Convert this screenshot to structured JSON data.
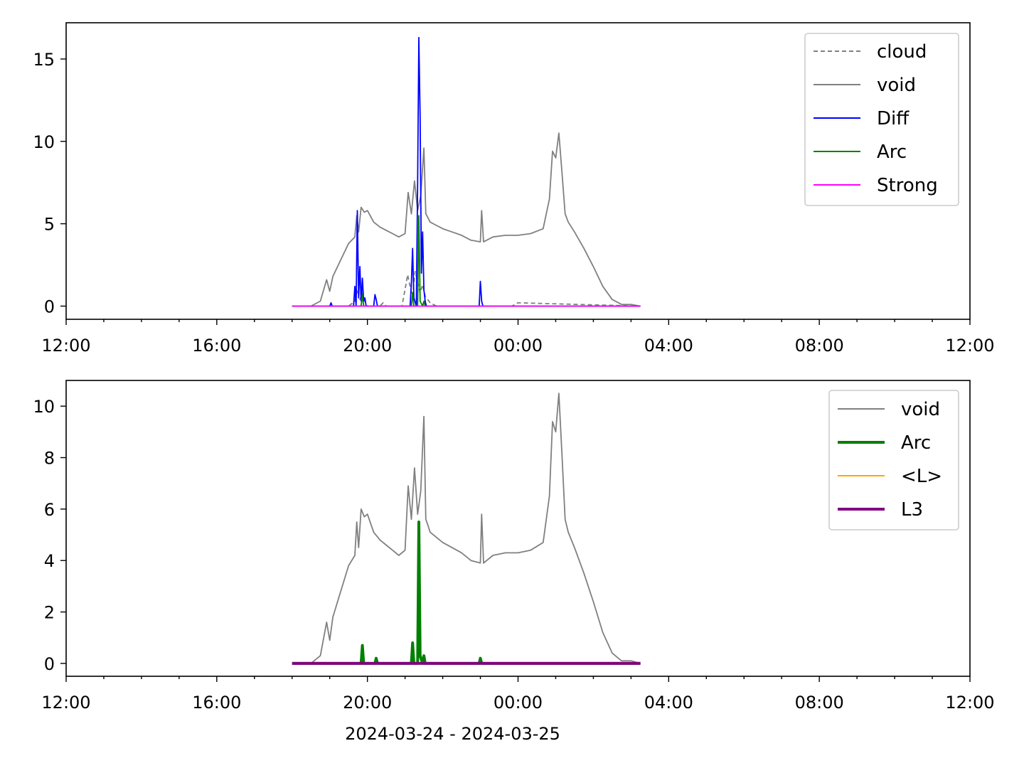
{
  "chart_data": [
    {
      "type": "line",
      "xlim": [
        "2024-03-24 12:00",
        "2024-03-25 12:00"
      ],
      "ylim": [
        -0.8,
        17.2
      ],
      "x_ticks": [
        "12:00",
        "16:00",
        "20:00",
        "00:00",
        "04:00",
        "08:00",
        "12:00"
      ],
      "y_ticks": [
        0,
        5,
        10,
        15
      ],
      "legend_position": "top-right",
      "series": [
        {
          "name": "cloud",
          "color": "#808080",
          "style": "dashed",
          "x": [
            "2024-03-24 18:00",
            "2024-03-24 19:30",
            "2024-03-24 19:40",
            "2024-03-24 19:44",
            "2024-03-24 19:48",
            "2024-03-24 19:52",
            "2024-03-24 19:56",
            "2024-03-24 20:00",
            "2024-03-24 20:20",
            "2024-03-24 20:25",
            "2024-03-24 20:30",
            "2024-03-24 20:55",
            "2024-03-24 21:00",
            "2024-03-24 21:04",
            "2024-03-24 21:08",
            "2024-03-24 21:12",
            "2024-03-24 21:16",
            "2024-03-24 21:20",
            "2024-03-24 21:24",
            "2024-03-24 21:28",
            "2024-03-24 21:32",
            "2024-03-24 21:36",
            "2024-03-24 21:40",
            "2024-03-24 21:50",
            "2024-03-24 23:00",
            "2024-03-24 23:50",
            "2024-03-25 00:00",
            "2024-03-25 03:15"
          ],
          "y": [
            0,
            0,
            0.3,
            1.0,
            0.4,
            0.8,
            0.3,
            0,
            0,
            0.2,
            0,
            0,
            1.0,
            1.9,
            1.2,
            0.6,
            2.1,
            1.5,
            0.8,
            1.3,
            0.6,
            0.4,
            0.2,
            0,
            0,
            0,
            0.2,
            0
          ]
        },
        {
          "name": "void",
          "color": "#808080",
          "style": "solid",
          "x": [
            "2024-03-24 18:00",
            "2024-03-24 18:30",
            "2024-03-24 18:45",
            "2024-03-24 18:55",
            "2024-03-24 19:00",
            "2024-03-24 19:05",
            "2024-03-24 19:15",
            "2024-03-24 19:30",
            "2024-03-24 19:40",
            "2024-03-24 19:43",
            "2024-03-24 19:46",
            "2024-03-24 19:50",
            "2024-03-24 19:55",
            "2024-03-24 20:00",
            "2024-03-24 20:10",
            "2024-03-24 20:20",
            "2024-03-24 20:30",
            "2024-03-24 20:40",
            "2024-03-24 20:50",
            "2024-03-24 21:00",
            "2024-03-24 21:05",
            "2024-03-24 21:10",
            "2024-03-24 21:15",
            "2024-03-24 21:20",
            "2024-03-24 21:25",
            "2024-03-24 21:30",
            "2024-03-24 21:33",
            "2024-03-24 21:36",
            "2024-03-24 21:40",
            "2024-03-24 21:50",
            "2024-03-24 22:00",
            "2024-03-24 22:15",
            "2024-03-24 22:30",
            "2024-03-24 22:45",
            "2024-03-24 23:00",
            "2024-03-24 23:02",
            "2024-03-24 23:05",
            "2024-03-24 23:20",
            "2024-03-24 23:40",
            "2024-03-25 00:00",
            "2024-03-25 00:20",
            "2024-03-25 00:40",
            "2024-03-25 00:50",
            "2024-03-25 00:55",
            "2024-03-25 01:00",
            "2024-03-25 01:05",
            "2024-03-25 01:10",
            "2024-03-25 01:15",
            "2024-03-25 01:20",
            "2024-03-25 01:30",
            "2024-03-25 01:45",
            "2024-03-25 02:00",
            "2024-03-25 02:15",
            "2024-03-25 02:30",
            "2024-03-25 02:45",
            "2024-03-25 03:00",
            "2024-03-25 03:15"
          ],
          "y": [
            0,
            0,
            0.3,
            1.6,
            0.9,
            1.8,
            2.6,
            3.8,
            4.2,
            5.5,
            4.5,
            6.0,
            5.7,
            5.8,
            5.1,
            4.8,
            4.6,
            4.4,
            4.2,
            4.4,
            6.9,
            5.6,
            7.6,
            5.8,
            6.7,
            9.6,
            5.6,
            5.4,
            5.1,
            4.9,
            4.7,
            4.5,
            4.3,
            4.0,
            3.9,
            5.8,
            3.9,
            4.2,
            4.3,
            4.3,
            4.4,
            4.7,
            6.5,
            9.4,
            9.0,
            10.5,
            8.1,
            5.6,
            5.1,
            4.5,
            3.5,
            2.4,
            1.2,
            0.4,
            0.1,
            0.1,
            0
          ]
        },
        {
          "name": "Diff",
          "color": "#0000ff",
          "style": "solid",
          "x": [
            "2024-03-24 18:00",
            "2024-03-24 19:00",
            "2024-03-24 19:02",
            "2024-03-24 19:04",
            "2024-03-24 19:38",
            "2024-03-24 19:40",
            "2024-03-24 19:42",
            "2024-03-24 19:44",
            "2024-03-24 19:46",
            "2024-03-24 19:48",
            "2024-03-24 19:50",
            "2024-03-24 19:52",
            "2024-03-24 19:54",
            "2024-03-24 19:56",
            "2024-03-24 19:58",
            "2024-03-24 20:10",
            "2024-03-24 20:12",
            "2024-03-24 20:14",
            "2024-03-24 20:16",
            "2024-03-24 21:08",
            "2024-03-24 21:10",
            "2024-03-24 21:12",
            "2024-03-24 21:14",
            "2024-03-24 21:18",
            "2024-03-24 21:20",
            "2024-03-24 21:22",
            "2024-03-24 21:24",
            "2024-03-24 21:26",
            "2024-03-24 21:28",
            "2024-03-24 21:30",
            "2024-03-24 21:32",
            "2024-03-24 21:34",
            "2024-03-24 22:58",
            "2024-03-24 23:00",
            "2024-03-24 23:02",
            "2024-03-24 23:04",
            "2024-03-25 03:15"
          ],
          "y": [
            0,
            0,
            0.2,
            0,
            0,
            1.2,
            0,
            5.8,
            0.5,
            2.4,
            0.3,
            1.7,
            0.3,
            0.5,
            0,
            0,
            0.7,
            0.4,
            0,
            0,
            1.4,
            3.5,
            0.5,
            0,
            7.5,
            16.3,
            11.5,
            2.0,
            4.5,
            1.0,
            0.3,
            0,
            0,
            1.5,
            0.3,
            0,
            0
          ]
        },
        {
          "name": "Arc",
          "color": "#008000",
          "style": "solid",
          "x": [
            "2024-03-24 18:00",
            "2024-03-24 19:50",
            "2024-03-24 19:52",
            "2024-03-24 19:54",
            "2024-03-24 21:10",
            "2024-03-24 21:12",
            "2024-03-24 21:14",
            "2024-03-24 21:20",
            "2024-03-24 21:22",
            "2024-03-24 21:24",
            "2024-03-24 21:28",
            "2024-03-24 21:30",
            "2024-03-24 21:32",
            "2024-03-25 03:15"
          ],
          "y": [
            0,
            0,
            0.7,
            0,
            0,
            0.8,
            0,
            0,
            5.5,
            0.3,
            0,
            0.3,
            0,
            0
          ]
        },
        {
          "name": "Strong",
          "color": "#ff00ff",
          "style": "solid",
          "x": [
            "2024-03-24 18:00",
            "2024-03-25 03:15"
          ],
          "y": [
            0,
            0
          ]
        }
      ]
    },
    {
      "type": "line",
      "xlim": [
        "2024-03-24 12:00",
        "2024-03-25 12:00"
      ],
      "ylim": [
        -0.5,
        11.0
      ],
      "x_ticks": [
        "12:00",
        "16:00",
        "20:00",
        "00:00",
        "04:00",
        "08:00",
        "12:00"
      ],
      "y_ticks": [
        0,
        2,
        4,
        6,
        8,
        10
      ],
      "xlabel": "2024-03-24 - 2024-03-25",
      "legend_position": "top-right",
      "series": [
        {
          "name": "void",
          "color": "#808080",
          "style": "solid",
          "x": [
            "2024-03-24 18:00",
            "2024-03-24 18:30",
            "2024-03-24 18:45",
            "2024-03-24 18:55",
            "2024-03-24 19:00",
            "2024-03-24 19:05",
            "2024-03-24 19:15",
            "2024-03-24 19:30",
            "2024-03-24 19:40",
            "2024-03-24 19:43",
            "2024-03-24 19:46",
            "2024-03-24 19:50",
            "2024-03-24 19:55",
            "2024-03-24 20:00",
            "2024-03-24 20:10",
            "2024-03-24 20:20",
            "2024-03-24 20:30",
            "2024-03-24 20:40",
            "2024-03-24 20:50",
            "2024-03-24 21:00",
            "2024-03-24 21:05",
            "2024-03-24 21:10",
            "2024-03-24 21:15",
            "2024-03-24 21:20",
            "2024-03-24 21:25",
            "2024-03-24 21:30",
            "2024-03-24 21:33",
            "2024-03-24 21:36",
            "2024-03-24 21:40",
            "2024-03-24 21:50",
            "2024-03-24 22:00",
            "2024-03-24 22:15",
            "2024-03-24 22:30",
            "2024-03-24 22:45",
            "2024-03-24 23:00",
            "2024-03-24 23:02",
            "2024-03-24 23:05",
            "2024-03-24 23:20",
            "2024-03-24 23:40",
            "2024-03-25 00:00",
            "2024-03-25 00:20",
            "2024-03-25 00:40",
            "2024-03-25 00:50",
            "2024-03-25 00:55",
            "2024-03-25 01:00",
            "2024-03-25 01:05",
            "2024-03-25 01:10",
            "2024-03-25 01:15",
            "2024-03-25 01:20",
            "2024-03-25 01:30",
            "2024-03-25 01:45",
            "2024-03-25 02:00",
            "2024-03-25 02:15",
            "2024-03-25 02:30",
            "2024-03-25 02:45",
            "2024-03-25 03:00",
            "2024-03-25 03:15"
          ],
          "y": [
            0,
            0,
            0.3,
            1.6,
            0.9,
            1.8,
            2.6,
            3.8,
            4.2,
            5.5,
            4.5,
            6.0,
            5.7,
            5.8,
            5.1,
            4.8,
            4.6,
            4.4,
            4.2,
            4.4,
            6.9,
            5.6,
            7.6,
            5.8,
            6.7,
            9.6,
            5.6,
            5.4,
            5.1,
            4.9,
            4.7,
            4.5,
            4.3,
            4.0,
            3.9,
            5.8,
            3.9,
            4.2,
            4.3,
            4.3,
            4.4,
            4.7,
            6.5,
            9.4,
            9.0,
            10.5,
            8.1,
            5.6,
            5.1,
            4.5,
            3.5,
            2.4,
            1.2,
            0.4,
            0.1,
            0.1,
            0
          ]
        },
        {
          "name": "Arc",
          "color": "#008000",
          "style": "thick",
          "x": [
            "2024-03-24 18:00",
            "2024-03-24 19:50",
            "2024-03-24 19:52",
            "2024-03-24 19:54",
            "2024-03-24 20:12",
            "2024-03-24 20:14",
            "2024-03-24 20:16",
            "2024-03-24 21:10",
            "2024-03-24 21:12",
            "2024-03-24 21:14",
            "2024-03-24 21:20",
            "2024-03-24 21:22",
            "2024-03-24 21:24",
            "2024-03-24 21:28",
            "2024-03-24 21:30",
            "2024-03-24 21:32",
            "2024-03-24 22:58",
            "2024-03-24 23:00",
            "2024-03-24 23:02",
            "2024-03-25 03:15"
          ],
          "y": [
            0,
            0,
            0.7,
            0,
            0,
            0.2,
            0,
            0,
            0.8,
            0,
            0,
            5.5,
            0.3,
            0,
            0.3,
            0,
            0,
            0.2,
            0,
            0
          ]
        },
        {
          "name": "<L>",
          "color": "#ffa500",
          "style": "solid",
          "x": [
            "2024-03-24 18:00",
            "2024-03-25 03:15"
          ],
          "y": [
            0,
            0
          ]
        },
        {
          "name": "L3",
          "color": "#800080",
          "style": "thick",
          "x": [
            "2024-03-24 18:00",
            "2024-03-25 03:15"
          ],
          "y": [
            0,
            0
          ]
        }
      ]
    }
  ]
}
